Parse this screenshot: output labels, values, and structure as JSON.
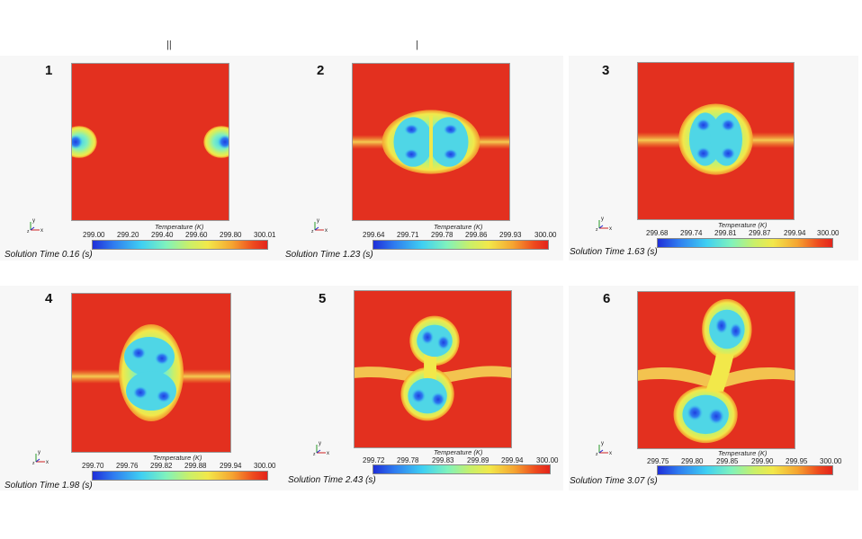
{
  "colorbar_title": "Temperature (K)",
  "axis_labels": {
    "y": "y",
    "z": "z",
    "x": "x"
  },
  "colors": {
    "background": "#e3301f",
    "cold": "#1f2fd8",
    "warm": "#f2e84a"
  },
  "panels": [
    {
      "number": "1",
      "ticks": [
        "299.00",
        "299.20",
        "299.40",
        "299.60",
        "299.80",
        "300.01"
      ],
      "time": "Solution Time 0.16 (s)"
    },
    {
      "number": "2",
      "ticks": [
        "299.64",
        "299.71",
        "299.78",
        "299.86",
        "299.93",
        "300.00"
      ],
      "time": "Solution Time 1.23 (s)"
    },
    {
      "number": "3",
      "ticks": [
        "299.68",
        "299.74",
        "299.81",
        "299.87",
        "299.94",
        "300.00"
      ],
      "time": "Solution Time 1.63 (s)"
    },
    {
      "number": "4",
      "ticks": [
        "299.70",
        "299.76",
        "299.82",
        "299.88",
        "299.94",
        "300.00"
      ],
      "time": "Solution Time 1.98 (s)"
    },
    {
      "number": "5",
      "ticks": [
        "299.72",
        "299.78",
        "299.83",
        "299.89",
        "299.94",
        "300.00"
      ],
      "time": "Solution Time 2.43 (s)"
    },
    {
      "number": "6",
      "ticks": [
        "299.75",
        "299.80",
        "299.85",
        "299.90",
        "299.95",
        "300.00"
      ],
      "time": "Solution Time 3.07 (s)"
    }
  ]
}
